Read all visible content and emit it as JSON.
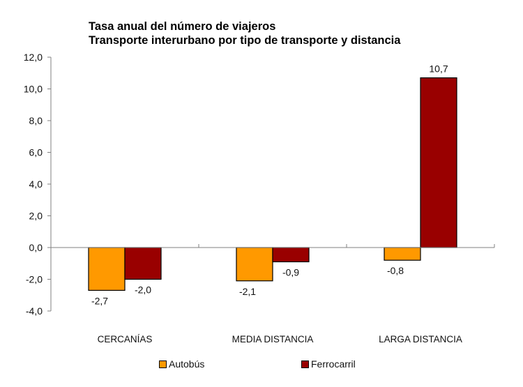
{
  "chart_data": {
    "type": "bar",
    "title": "Tasa anual del número de viajeros",
    "subtitle": "Transporte interurbano por tipo de transporte y distancia",
    "xlabel": "",
    "ylabel": "",
    "categories": [
      "CERCANÍAS",
      "MEDIA DISTANCIA",
      "LARGA DISTANCIA"
    ],
    "series": [
      {
        "name": "Autobús",
        "color": "#FF9900",
        "values": [
          -2.7,
          -2.1,
          -0.8
        ],
        "labels": [
          "-2,7",
          "-2,1",
          "-0,8"
        ]
      },
      {
        "name": "Ferrocarril",
        "color": "#990000",
        "values": [
          -2.0,
          -0.9,
          10.7
        ],
        "labels": [
          "-2,0",
          "-0,9",
          "10,7"
        ]
      }
    ],
    "ylim": [
      -4,
      12
    ],
    "yticks": [
      12,
      10,
      8,
      6,
      4,
      2,
      0,
      -2,
      -4
    ],
    "ytick_labels": [
      "12,0",
      "10,0",
      "8,0",
      "6,0",
      "4,0",
      "2,0",
      "0,0",
      "-2,0",
      "-4,0"
    ],
    "grid": false,
    "legend_position": "bottom"
  }
}
